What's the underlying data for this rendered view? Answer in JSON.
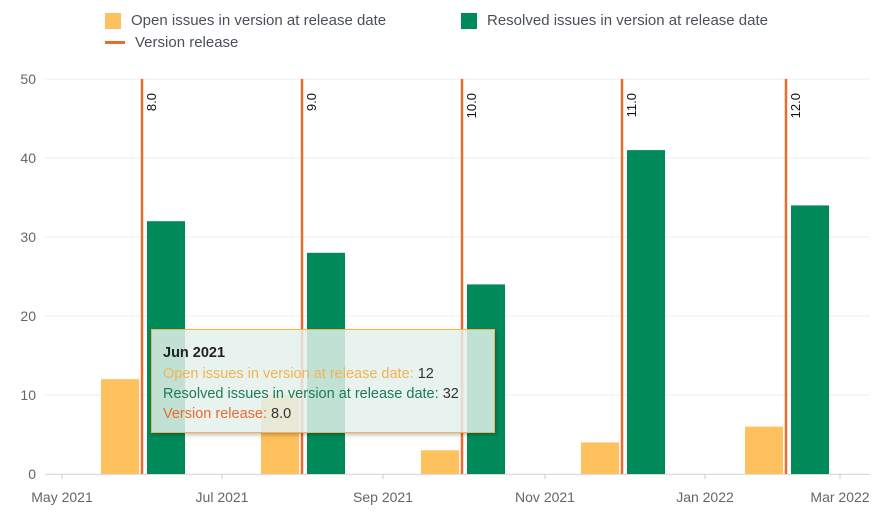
{
  "legend": {
    "open": "Open issues in version at release date",
    "resolved": "Resolved issues in version at release date",
    "release": "Version release"
  },
  "tooltip": {
    "title": "Jun 2021",
    "open_label": "Open issues in version at release date:",
    "open_value": "12",
    "resolved_label": "Resolved issues in version at release date:",
    "resolved_value": "32",
    "release_label": "Version release:",
    "release_value": "8.0"
  },
  "colors": {
    "open": "#ffc05e",
    "resolved": "#008a5a",
    "release": "#ee6a2a",
    "axis_text": "#666666",
    "grid": "#eeeeee"
  },
  "chart_data": {
    "type": "bar",
    "x_axis": {
      "ticks": [
        "May 2021",
        "Jul 2021",
        "Sep 2021",
        "Nov 2021",
        "Jan 2022",
        "Mar 2022"
      ]
    },
    "y_axis": {
      "ticks": [
        0,
        10,
        20,
        30,
        40,
        50
      ],
      "ylim": [
        0,
        50
      ]
    },
    "grid": true,
    "legend_position": "top",
    "releases": [
      {
        "version": "8.0",
        "open": 12,
        "resolved": 32
      },
      {
        "version": "9.0",
        "open": 10,
        "resolved": 28
      },
      {
        "version": "10.0",
        "open": 3,
        "resolved": 24
      },
      {
        "version": "11.0",
        "open": 4,
        "resolved": 41
      },
      {
        "version": "12.0",
        "open": 6,
        "resolved": 34
      }
    ]
  }
}
